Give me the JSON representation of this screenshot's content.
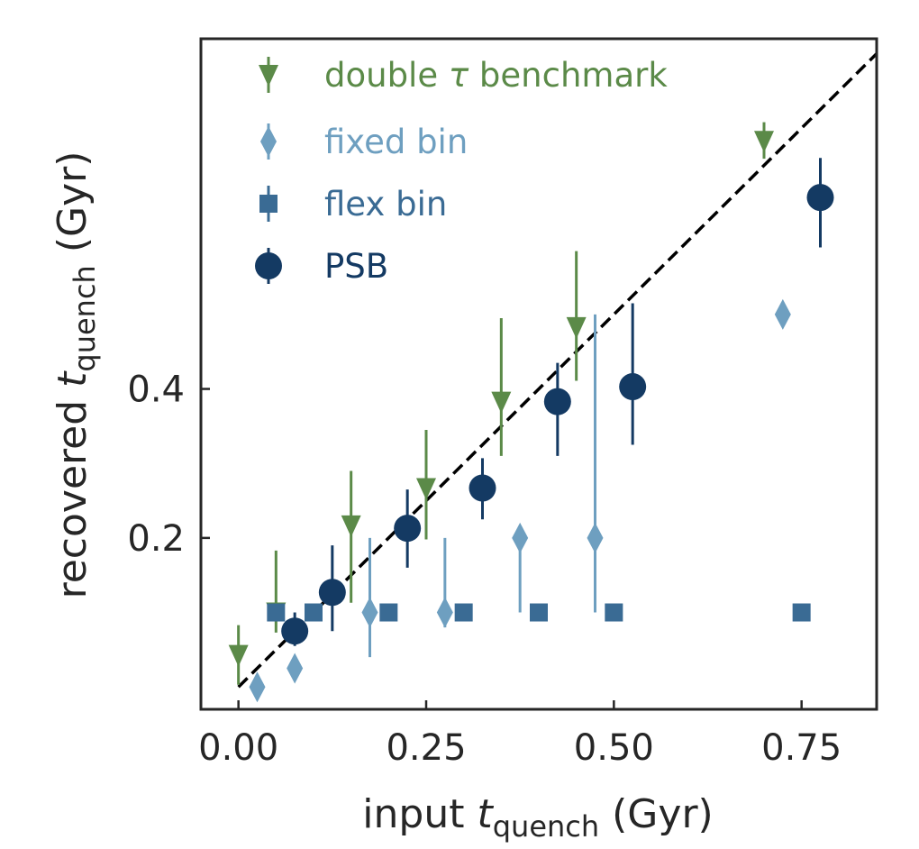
{
  "chart_data": {
    "type": "scatter",
    "xlabel": {
      "main": "input ",
      "var": "t",
      "sub": "quench",
      "unit": " (Gyr)"
    },
    "ylabel": {
      "main": "recovered ",
      "var": "t",
      "sub": "quench",
      "unit": " (Gyr)"
    },
    "xlim": [
      -0.05,
      0.85
    ],
    "ylim": [
      -0.03,
      0.87
    ],
    "xticks": [
      {
        "value": 0.0,
        "label": "0.00"
      },
      {
        "value": 0.25,
        "label": "0.25"
      },
      {
        "value": 0.5,
        "label": "0.50"
      },
      {
        "value": 0.75,
        "label": "0.75"
      }
    ],
    "yticks": [
      {
        "value": 0.2,
        "label": "0.2"
      },
      {
        "value": 0.4,
        "label": "0.4"
      }
    ],
    "grid": false,
    "legend_position": "top-left",
    "reference_line": {
      "style": "dashed",
      "color": "#000000",
      "from": [
        0.0,
        0.0
      ],
      "to": [
        0.85,
        0.85
      ]
    },
    "series": [
      {
        "name": "double τ benchmark",
        "legend_parts": [
          "double ",
          "τ",
          " benchmark"
        ],
        "marker": "triangle-down",
        "color": "#5b8a48",
        "points": [
          {
            "x": 0.0,
            "y": 0.043,
            "ylo": 0.003,
            "yhi": 0.083
          },
          {
            "x": 0.05,
            "y": 0.1,
            "ylo": 0.073,
            "yhi": 0.183
          },
          {
            "x": 0.15,
            "y": 0.217,
            "ylo": 0.113,
            "yhi": 0.29
          },
          {
            "x": 0.25,
            "y": 0.267,
            "ylo": 0.198,
            "yhi": 0.345
          },
          {
            "x": 0.35,
            "y": 0.383,
            "ylo": 0.31,
            "yhi": 0.495
          },
          {
            "x": 0.45,
            "y": 0.483,
            "ylo": 0.411,
            "yhi": 0.585
          },
          {
            "x": 0.7,
            "y": 0.733,
            "ylo": 0.709,
            "yhi": 0.758
          }
        ]
      },
      {
        "name": "fixed bin",
        "marker": "diamond",
        "color": "#6e9fc0",
        "points": [
          {
            "x": 0.025,
            "y": 0.0,
            "ylo": -0.008,
            "yhi": 0.012
          },
          {
            "x": 0.075,
            "y": 0.025,
            "ylo": 0.013,
            "yhi": 0.037
          },
          {
            "x": 0.175,
            "y": 0.1,
            "ylo": 0.04,
            "yhi": 0.2
          },
          {
            "x": 0.275,
            "y": 0.1,
            "ylo": 0.08,
            "yhi": 0.2
          },
          {
            "x": 0.375,
            "y": 0.2,
            "ylo": 0.1,
            "yhi": 0.2
          },
          {
            "x": 0.475,
            "y": 0.2,
            "ylo": 0.1,
            "yhi": 0.5
          },
          {
            "x": 0.725,
            "y": 0.5,
            "ylo": 0.5,
            "yhi": 0.5
          }
        ]
      },
      {
        "name": "flex bin",
        "marker": "square",
        "color": "#3a6b94",
        "points": [
          {
            "x": 0.05,
            "y": 0.1,
            "ylo": 0.1,
            "yhi": 0.1
          },
          {
            "x": 0.1,
            "y": 0.1,
            "ylo": 0.1,
            "yhi": 0.1
          },
          {
            "x": 0.2,
            "y": 0.1,
            "ylo": 0.1,
            "yhi": 0.1
          },
          {
            "x": 0.3,
            "y": 0.1,
            "ylo": 0.1,
            "yhi": 0.1
          },
          {
            "x": 0.4,
            "y": 0.1,
            "ylo": 0.1,
            "yhi": 0.1
          },
          {
            "x": 0.5,
            "y": 0.1,
            "ylo": 0.1,
            "yhi": 0.1
          },
          {
            "x": 0.75,
            "y": 0.1,
            "ylo": 0.1,
            "yhi": 0.1
          }
        ]
      },
      {
        "name": "PSB",
        "marker": "circle",
        "color": "#143a63",
        "points": [
          {
            "x": 0.075,
            "y": 0.075,
            "ylo": 0.055,
            "yhi": 0.1
          },
          {
            "x": 0.125,
            "y": 0.127,
            "ylo": 0.075,
            "yhi": 0.19
          },
          {
            "x": 0.225,
            "y": 0.213,
            "ylo": 0.16,
            "yhi": 0.265
          },
          {
            "x": 0.325,
            "y": 0.267,
            "ylo": 0.225,
            "yhi": 0.307
          },
          {
            "x": 0.425,
            "y": 0.383,
            "ylo": 0.31,
            "yhi": 0.435
          },
          {
            "x": 0.525,
            "y": 0.403,
            "ylo": 0.325,
            "yhi": 0.515
          },
          {
            "x": 0.775,
            "y": 0.657,
            "ylo": 0.59,
            "yhi": 0.71
          }
        ]
      }
    ]
  }
}
